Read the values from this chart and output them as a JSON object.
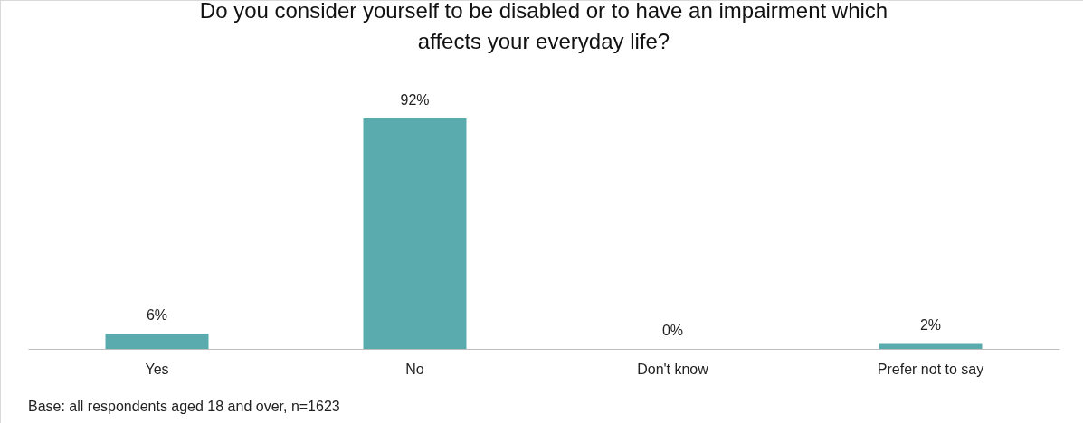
{
  "chart_data": {
    "type": "bar",
    "title": "Do you consider yourself to be disabled or to have an impairment which affects your everyday life?",
    "categories": [
      "Yes",
      "No",
      "Don't know",
      "Prefer not to say"
    ],
    "values": [
      6,
      92,
      0,
      2
    ],
    "value_labels": [
      "6%",
      "92%",
      "0%",
      "2%"
    ],
    "color": "#5aabad",
    "annotations": [
      "Base: all respondents aged 18 and over, n=1623"
    ]
  }
}
